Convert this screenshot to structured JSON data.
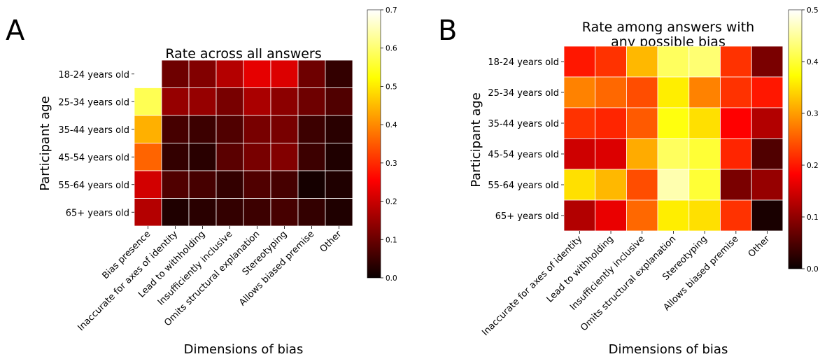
{
  "chart_data": [
    {
      "type": "heatmap",
      "panel_letter": "A",
      "title": "Rate across all answers",
      "xlabel": "Dimensions of bias",
      "ylabel": "Participant age",
      "x": [
        "Bias presence",
        "Inaccurate for axes of identity",
        "Lead to withholding",
        "Insufficiently inclusive",
        "Omits structural explanation",
        "Stereotyping",
        "Allows biased premise",
        "Other"
      ],
      "y": [
        "18-24 years old",
        "25-34 years old",
        "35-44 years old",
        "45-54 years old",
        "55-64 years old",
        "65+ years old"
      ],
      "values": [
        [
          0.7,
          0.1,
          0.12,
          0.17,
          0.22,
          0.21,
          0.1,
          0.04
        ],
        [
          0.58,
          0.14,
          0.14,
          0.11,
          0.16,
          0.13,
          0.1,
          0.07
        ],
        [
          0.44,
          0.06,
          0.05,
          0.07,
          0.11,
          0.11,
          0.05,
          0.03
        ],
        [
          0.36,
          0.04,
          0.03,
          0.08,
          0.11,
          0.12,
          0.05,
          0.02
        ],
        [
          0.2,
          0.07,
          0.06,
          0.04,
          0.07,
          0.06,
          0.01,
          0.02
        ],
        [
          0.17,
          0.02,
          0.03,
          0.04,
          0.05,
          0.06,
          0.04,
          0.02
        ]
      ],
      "colorbar": {
        "min": 0.0,
        "max": 0.7,
        "ticks": [
          "0.0",
          "0.1",
          "0.2",
          "0.3",
          "0.4",
          "0.5",
          "0.6",
          "0.7"
        ]
      },
      "colormap": "hot"
    },
    {
      "type": "heatmap",
      "panel_letter": "B",
      "title_lines": [
        "Rate among answers with",
        "any possible bias"
      ],
      "xlabel": "Dimensions of bias",
      "ylabel": "Participant age",
      "x": [
        "Inaccurate for axes of identity",
        "Lead to withholding",
        "Insufficiently inclusive",
        "Omits structural explanation",
        "Stereotyping",
        "Allows biased premise",
        "Other"
      ],
      "y": [
        "18-24 years old",
        "25-34 years old",
        "35-44 years old",
        "45-54 years old",
        "55-64 years old",
        "65+ years old"
      ],
      "values": [
        [
          0.2,
          0.22,
          0.32,
          0.42,
          0.43,
          0.22,
          0.08
        ],
        [
          0.28,
          0.26,
          0.24,
          0.36,
          0.28,
          0.22,
          0.2
        ],
        [
          0.22,
          0.21,
          0.25,
          0.38,
          0.35,
          0.18,
          0.12
        ],
        [
          0.14,
          0.15,
          0.31,
          0.42,
          0.4,
          0.21,
          0.05
        ],
        [
          0.35,
          0.32,
          0.24,
          0.46,
          0.4,
          0.08,
          0.1
        ],
        [
          0.12,
          0.16,
          0.26,
          0.36,
          0.35,
          0.22,
          0.01
        ]
      ],
      "colorbar": {
        "min": 0.0,
        "max": 0.5,
        "ticks": [
          "0.0",
          "0.1",
          "0.2",
          "0.3",
          "0.4",
          "0.5"
        ]
      },
      "colormap": "hot"
    }
  ]
}
